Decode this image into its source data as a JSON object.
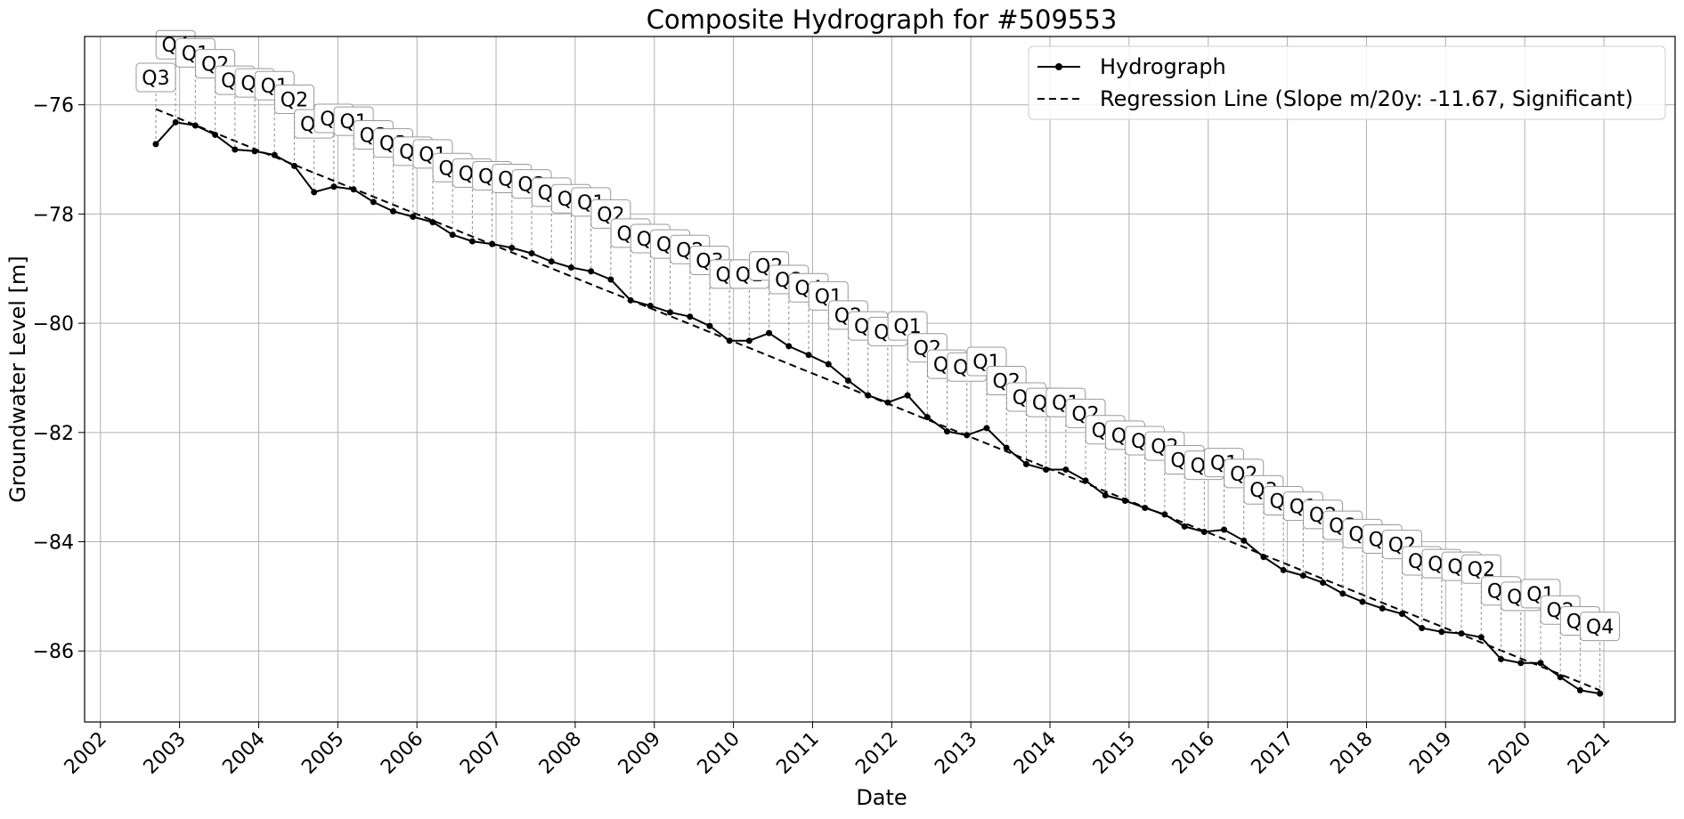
{
  "chart_data": {
    "type": "line",
    "title": "Composite Hydrograph for  #509553",
    "xlabel": "Date",
    "ylabel": "Groundwater Level [m]",
    "xlim": [
      2001.8,
      2021.9
    ],
    "ylim": [
      -87.3,
      -74.75
    ],
    "x_ticks": [
      "2002",
      "2003",
      "2004",
      "2005",
      "2006",
      "2007",
      "2008",
      "2009",
      "2010",
      "2011",
      "2012",
      "2013",
      "2014",
      "2015",
      "2016",
      "2017",
      "2018",
      "2019",
      "2020",
      "2021"
    ],
    "y_ticks": [
      "−76",
      "−78",
      "−80",
      "−82",
      "−84",
      "−86"
    ],
    "grid": true,
    "legend_position": "top-right",
    "series": [
      {
        "name": "Hydrograph",
        "style": "solid-marker",
        "color": "#000000",
        "x": [
          2002.7,
          2002.95,
          2003.2,
          2003.45,
          2003.7,
          2003.95,
          2004.2,
          2004.45,
          2004.7,
          2004.95,
          2005.2,
          2005.45,
          2005.7,
          2005.95,
          2006.2,
          2006.45,
          2006.7,
          2006.95,
          2007.2,
          2007.45,
          2007.7,
          2007.95,
          2008.2,
          2008.45,
          2008.7,
          2008.95,
          2009.2,
          2009.45,
          2009.7,
          2009.95,
          2010.2,
          2010.45,
          2010.7,
          2010.95,
          2011.2,
          2011.45,
          2011.7,
          2011.95,
          2012.2,
          2012.45,
          2012.7,
          2012.95,
          2013.2,
          2013.45,
          2013.7,
          2013.95,
          2014.2,
          2014.45,
          2014.7,
          2014.95,
          2015.2,
          2015.45,
          2015.7,
          2015.95,
          2016.2,
          2016.45,
          2016.7,
          2016.95,
          2017.2,
          2017.45,
          2017.7,
          2017.95,
          2018.2,
          2018.45,
          2018.7,
          2018.95,
          2019.2,
          2019.45,
          2019.7,
          2019.95,
          2020.2,
          2020.45,
          2020.7,
          2020.95
        ],
        "y": [
          -76.72,
          -76.32,
          -76.38,
          -76.55,
          -76.82,
          -76.85,
          -76.92,
          -77.12,
          -77.6,
          -77.5,
          -77.55,
          -77.78,
          -77.95,
          -78.05,
          -78.15,
          -78.38,
          -78.5,
          -78.55,
          -78.62,
          -78.72,
          -78.87,
          -78.98,
          -79.05,
          -79.2,
          -79.58,
          -79.68,
          -79.8,
          -79.88,
          -80.05,
          -80.32,
          -80.32,
          -80.18,
          -80.42,
          -80.58,
          -80.75,
          -81.05,
          -81.32,
          -81.45,
          -81.32,
          -81.72,
          -81.98,
          -82.05,
          -81.92,
          -82.28,
          -82.58,
          -82.68,
          -82.68,
          -82.88,
          -83.15,
          -83.25,
          -83.38,
          -83.5,
          -83.72,
          -83.82,
          -83.78,
          -83.98,
          -84.28,
          -84.52,
          -84.62,
          -84.75,
          -84.95,
          -85.1,
          -85.22,
          -85.32,
          -85.58,
          -85.65,
          -85.68,
          -85.75,
          -86.15,
          -86.22,
          -86.22,
          -86.48,
          -86.72,
          -86.78
        ]
      },
      {
        "name": "Regression Line (Slope m/20y: -11.67, Significant)",
        "style": "dashed",
        "color": "#000000",
        "x": [
          2002.7,
          2020.95
        ],
        "y": [
          -76.08,
          -86.72
        ]
      }
    ],
    "annotations": {
      "labels": [
        "Q3",
        "Q4",
        "Q1",
        "Q2",
        "Q3",
        "Q4",
        "Q1",
        "Q2",
        "Q3",
        "Q4",
        "Q1",
        "Q2",
        "Q3",
        "Q4",
        "Q1",
        "Q2",
        "Q3",
        "Q4",
        "Q1",
        "Q2",
        "Q3",
        "Q4",
        "Q1",
        "Q2",
        "Q3",
        "Q4",
        "Q1",
        "Q2",
        "Q3",
        "Q4",
        "Q1",
        "Q2",
        "Q3",
        "Q4",
        "Q1",
        "Q2",
        "Q3",
        "Q4",
        "Q1",
        "Q2",
        "Q3",
        "Q4",
        "Q1",
        "Q2",
        "Q3",
        "Q4",
        "Q1",
        "Q2",
        "Q3",
        "Q4",
        "Q1",
        "Q2",
        "Q3",
        "Q4",
        "Q1",
        "Q2",
        "Q3",
        "Q4",
        "Q1",
        "Q2",
        "Q3",
        "Q4",
        "Q1",
        "Q2",
        "Q3",
        "Q4",
        "Q1",
        "Q2",
        "Q3",
        "Q4",
        "Q1",
        "Q2",
        "Q3",
        "Q4"
      ],
      "y": [
        -75.5,
        -74.9,
        -75.05,
        -75.25,
        -75.55,
        -75.6,
        -75.65,
        -75.9,
        -76.35,
        -76.25,
        -76.3,
        -76.55,
        -76.7,
        -76.85,
        -76.9,
        -77.15,
        -77.25,
        -77.3,
        -77.35,
        -77.45,
        -77.6,
        -77.72,
        -77.78,
        -78.0,
        -78.35,
        -78.45,
        -78.55,
        -78.65,
        -78.85,
        -79.1,
        -79.1,
        -78.95,
        -79.2,
        -79.35,
        -79.5,
        -79.85,
        -80.05,
        -80.15,
        -80.05,
        -80.45,
        -80.75,
        -80.8,
        -80.7,
        -81.05,
        -81.35,
        -81.45,
        -81.45,
        -81.65,
        -81.95,
        -82.05,
        -82.15,
        -82.25,
        -82.5,
        -82.6,
        -82.55,
        -82.75,
        -83.05,
        -83.25,
        -83.35,
        -83.5,
        -83.7,
        -83.85,
        -83.95,
        -84.05,
        -84.35,
        -84.4,
        -84.45,
        -84.5,
        -84.9,
        -85.0,
        -84.95,
        -85.25,
        -85.45,
        -85.55
      ]
    }
  }
}
